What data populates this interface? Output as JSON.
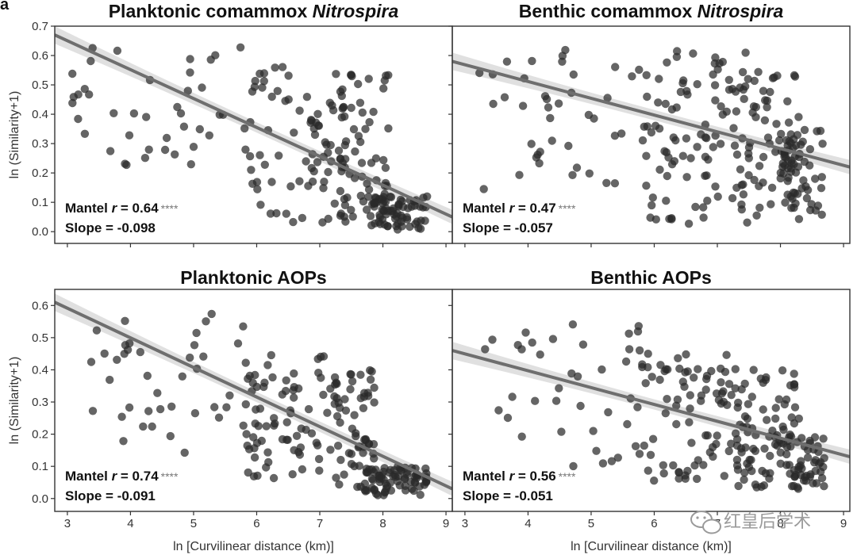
{
  "figure": {
    "panel_letter": "a",
    "watermark": "红皇后学术"
  },
  "chart_data": [
    {
      "id": "planktonic-comammox",
      "type": "scatter",
      "title": "Planktonic comammox ",
      "title_italic": "Nitrospira",
      "xlabel": "",
      "ylabel": "ln (Similarity+1)",
      "xlim": [
        2.8,
        9.1
      ],
      "ylim": [
        -0.04,
        0.7
      ],
      "xticks": [
        3,
        4,
        5,
        6,
        7,
        8,
        9
      ],
      "yticks": [
        0.0,
        0.1,
        0.2,
        0.3,
        0.4,
        0.5,
        0.6,
        0.7
      ],
      "show_x_tick_labels": false,
      "show_y_tick_labels": true,
      "stat_r_label": "Mantel r = 0.64",
      "stat_r_prefix": "Mantel ",
      "stat_r_var": "r",
      "stat_r_value": " = 0.64",
      "stat_sig": "****",
      "stat_slope": "Slope = -0.098",
      "fit_line": {
        "x": [
          2.8,
          9.1
        ],
        "y": [
          0.67,
          0.05
        ]
      },
      "clusters": [
        {
          "x": [
            3.0,
            5.8
          ],
          "y": [
            0.2,
            0.63
          ],
          "n": 40
        },
        {
          "x": [
            5.8,
            7.5
          ],
          "y": [
            0.03,
            0.57
          ],
          "n": 85
        },
        {
          "x": [
            7.3,
            8.1
          ],
          "y": [
            0.05,
            0.54
          ],
          "n": 55
        },
        {
          "x": [
            7.8,
            8.7
          ],
          "y": [
            0.0,
            0.12
          ],
          "n": 70
        }
      ]
    },
    {
      "id": "benthic-comammox",
      "type": "scatter",
      "title": "Benthic comammox ",
      "title_italic": "Nitrospira",
      "xlabel": "",
      "ylabel": "",
      "xlim": [
        2.8,
        9.1
      ],
      "ylim": [
        -0.04,
        0.7
      ],
      "xticks": [
        3,
        4,
        5,
        6,
        7,
        8,
        9
      ],
      "yticks": [
        0.0,
        0.1,
        0.2,
        0.3,
        0.4,
        0.5,
        0.6,
        0.7
      ],
      "show_x_tick_labels": false,
      "show_y_tick_labels": false,
      "stat_r_label": "Mantel r = 0.47",
      "stat_r_prefix": "Mantel ",
      "stat_r_var": "r",
      "stat_r_value": " = 0.47",
      "stat_sig": "****",
      "stat_slope": "Slope = -0.057",
      "fit_line": {
        "x": [
          2.8,
          9.1
        ],
        "y": [
          0.58,
          0.22
        ]
      },
      "clusters": [
        {
          "x": [
            3.2,
            5.8
          ],
          "y": [
            0.14,
            0.62
          ],
          "n": 40
        },
        {
          "x": [
            5.8,
            7.5
          ],
          "y": [
            0.02,
            0.62
          ],
          "n": 95
        },
        {
          "x": [
            7.3,
            8.3
          ],
          "y": [
            0.05,
            0.55
          ],
          "n": 60
        },
        {
          "x": [
            8.0,
            8.7
          ],
          "y": [
            0.03,
            0.35
          ],
          "n": 55
        }
      ]
    },
    {
      "id": "planktonic-aops",
      "type": "scatter",
      "title": "Planktonic AOPs",
      "title_italic": "",
      "xlabel": "ln [Curvilinear distance (km)]",
      "ylabel": "ln (Similarity+1)",
      "xlim": [
        2.8,
        9.1
      ],
      "ylim": [
        -0.04,
        0.65
      ],
      "xticks": [
        3,
        4,
        5,
        6,
        7,
        8,
        9
      ],
      "yticks": [
        0.0,
        0.1,
        0.2,
        0.3,
        0.4,
        0.5,
        0.6
      ],
      "show_x_tick_labels": true,
      "show_y_tick_labels": true,
      "stat_r_label": "Mantel r = 0.74",
      "stat_r_prefix": "Mantel ",
      "stat_r_var": "r",
      "stat_r_value": " = 0.74",
      "stat_sig": "****",
      "stat_slope": "Slope = -0.091",
      "fit_line": {
        "x": [
          2.8,
          9.1
        ],
        "y": [
          0.61,
          0.03
        ]
      },
      "clusters": [
        {
          "x": [
            3.2,
            5.8
          ],
          "y": [
            0.12,
            0.59
          ],
          "n": 40
        },
        {
          "x": [
            5.8,
            7.3
          ],
          "y": [
            0.05,
            0.45
          ],
          "n": 80
        },
        {
          "x": [
            7.2,
            7.9
          ],
          "y": [
            0.02,
            0.4
          ],
          "n": 55
        },
        {
          "x": [
            7.7,
            8.7
          ],
          "y": [
            0.01,
            0.1
          ],
          "n": 75
        }
      ]
    },
    {
      "id": "benthic-aops",
      "type": "scatter",
      "title": "Benthic AOPs",
      "title_italic": "",
      "xlabel": "ln [Curvilinear distance (km)]",
      "ylabel": "",
      "xlim": [
        2.8,
        9.1
      ],
      "ylim": [
        -0.04,
        0.65
      ],
      "xticks": [
        3,
        4,
        5,
        6,
        7,
        8,
        9
      ],
      "yticks": [
        0.0,
        0.1,
        0.2,
        0.3,
        0.4,
        0.5,
        0.6
      ],
      "show_x_tick_labels": true,
      "show_y_tick_labels": false,
      "stat_r_label": "Mantel r = 0.56",
      "stat_r_prefix": "Mantel ",
      "stat_r_var": "r",
      "stat_r_value": " = 0.56",
      "stat_sig": "****",
      "stat_slope": "Slope = -0.051",
      "fit_line": {
        "x": [
          2.8,
          9.1
        ],
        "y": [
          0.46,
          0.13
        ]
      },
      "clusters": [
        {
          "x": [
            3.3,
            5.8
          ],
          "y": [
            0.1,
            0.55
          ],
          "n": 40
        },
        {
          "x": [
            5.8,
            7.5
          ],
          "y": [
            0.05,
            0.45
          ],
          "n": 90
        },
        {
          "x": [
            7.3,
            8.3
          ],
          "y": [
            0.03,
            0.4
          ],
          "n": 70
        },
        {
          "x": [
            8.0,
            8.7
          ],
          "y": [
            0.03,
            0.2
          ],
          "n": 50
        }
      ]
    }
  ]
}
